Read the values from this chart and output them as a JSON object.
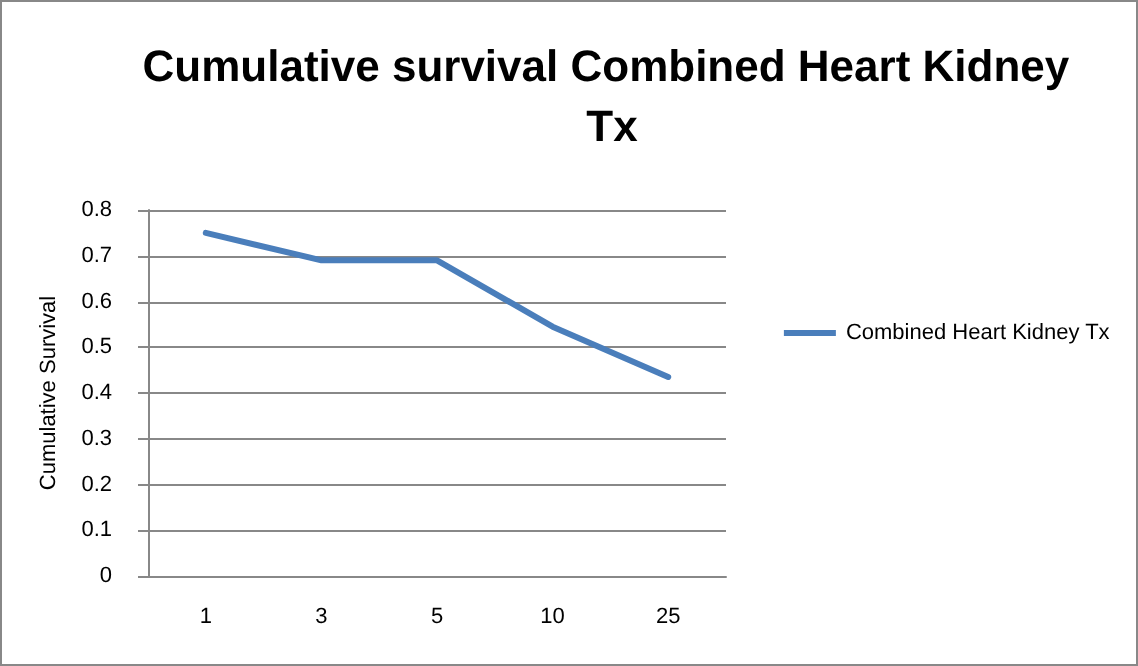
{
  "chart_data": {
    "type": "line",
    "title": "Cumulative survival Combined Heart Kidney Tx",
    "ylabel": "Cumulative Survival",
    "categories": [
      "1",
      "3",
      "5",
      "10",
      "25"
    ],
    "series": [
      {
        "name": "Combined Heart Kidney Tx",
        "color": "#4a7ebb",
        "values": [
          0.75,
          0.69,
          0.69,
          0.545,
          0.435
        ]
      }
    ],
    "ylim": [
      0,
      0.8
    ],
    "yticks": [
      0,
      0.1,
      0.2,
      0.3,
      0.4,
      0.5,
      0.6,
      0.7,
      0.8
    ],
    "grid": "y",
    "legend": "right",
    "marker": "none",
    "line_style": "solid"
  }
}
